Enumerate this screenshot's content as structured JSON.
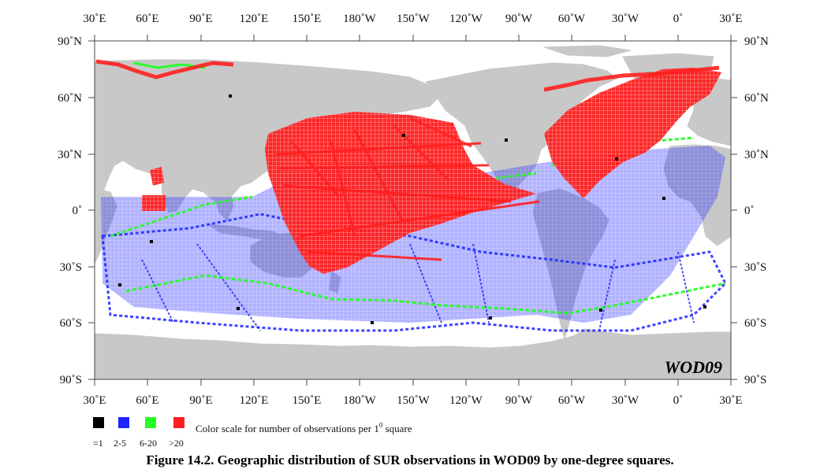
{
  "map": {
    "badge": "WOD09",
    "top_lon_labels": [
      "30˚E",
      "60˚E",
      "90˚E",
      "120˚E",
      "150˚E",
      "180˚W",
      "150˚W",
      "120˚W",
      "90˚W",
      "60˚W",
      "30˚W",
      "0˚",
      "30˚E"
    ],
    "bottom_lon_labels": [
      "30˚E",
      "60˚E",
      "90˚E",
      "120˚E",
      "150˚E",
      "180˚W",
      "150˚W",
      "120˚W",
      "90˚W",
      "60˚W",
      "30˚W",
      "0˚",
      "30˚E"
    ],
    "lat_labels": [
      "90˚N",
      "60˚N",
      "30˚N",
      "0˚",
      "30˚S",
      "60˚S",
      "90˚S"
    ],
    "colors": {
      "land": "#c8c8c8",
      "ocean": "#ffffff",
      "one": "#000000",
      "two_to_five": "#1c24ff",
      "six_to_twenty": "#22ff22",
      "over_twenty": "#ff1f1f"
    }
  },
  "legend": {
    "items": [
      {
        "label": "=1",
        "color": "#000000"
      },
      {
        "label": "2-5",
        "color": "#1c24ff"
      },
      {
        "label": "6-20",
        "color": "#22ff22"
      },
      {
        "label": ">20",
        "color": "#ff1f1f"
      }
    ],
    "note": "Color scale for number of observations per 1",
    "note_superscript": "0",
    "note_tail": " square"
  },
  "caption": "Figure 14.2. Geographic distribution of SUR observations in WOD09 by one-degree squares."
}
